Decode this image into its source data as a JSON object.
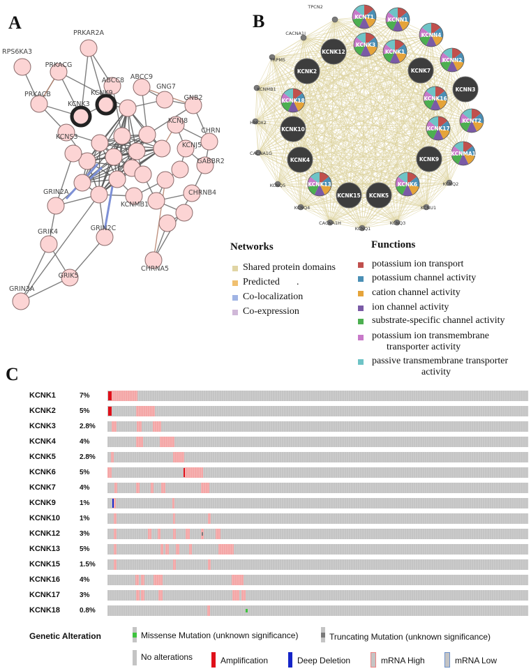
{
  "panels": {
    "a": "A",
    "b": "B",
    "c": "C"
  },
  "network_a": {
    "labels": [
      {
        "text": "PRKAR2A"
      },
      {
        "text": "RPS6KA3"
      },
      {
        "text": "PRKACG"
      },
      {
        "text": "ABCC8"
      },
      {
        "text": "ABCC9"
      },
      {
        "text": "PRKACB"
      },
      {
        "text": "KCNK3"
      },
      {
        "text": "KCNK9"
      },
      {
        "text": "GNG7"
      },
      {
        "text": "GNB2"
      },
      {
        "text": "KCNJ8"
      },
      {
        "text": "CHRN"
      },
      {
        "text": "KCNS3"
      },
      {
        "text": "KCNJ5"
      },
      {
        "text": "GABBR2"
      },
      {
        "text": "GRIN2A"
      },
      {
        "text": "CHRNB4"
      },
      {
        "text": "KCNMB1"
      },
      {
        "text": "GRIK4"
      },
      {
        "text": "GRIN2C"
      },
      {
        "text": "GRIK5"
      },
      {
        "text": "CHRNA5"
      },
      {
        "text": "GRIN3A"
      }
    ]
  },
  "network_b": {
    "big_nodes": [
      {
        "label": "KCNT1"
      },
      {
        "label": "KCNN1"
      },
      {
        "label": "KCNK12"
      },
      {
        "label": "KCNK3"
      },
      {
        "label": "KCNN4"
      },
      {
        "label": "KCNK1"
      },
      {
        "label": "KCNK2"
      },
      {
        "label": "KCNK7"
      },
      {
        "label": "KCNN2"
      },
      {
        "label": "KCNK18"
      },
      {
        "label": "KCNN3"
      },
      {
        "label": "KCNK16"
      },
      {
        "label": "KCNT2"
      },
      {
        "label": "KCNK10"
      },
      {
        "label": "KCNK17"
      },
      {
        "label": "KCNMA1"
      },
      {
        "label": "KCNK4"
      },
      {
        "label": "KCNK9"
      },
      {
        "label": "KCNK13"
      },
      {
        "label": "KCNK6"
      },
      {
        "label": "KCNK15"
      },
      {
        "label": "KCNK5"
      }
    ],
    "small_nodes": [
      {
        "label": "TPCN2"
      },
      {
        "label": "CACNA1I"
      },
      {
        "label": "TRPM5"
      },
      {
        "label": "KCNMB1"
      },
      {
        "label": "HMOX2"
      },
      {
        "label": "CACNA1G"
      },
      {
        "label": "KCNQ5"
      },
      {
        "label": "KCNQ2"
      },
      {
        "label": "KCNQ4"
      },
      {
        "label": "CACNA1H"
      },
      {
        "label": "KCNQ1"
      },
      {
        "label": "KCNQ3"
      },
      {
        "label": "KCNU1"
      }
    ]
  },
  "networks_legend": {
    "title": "Networks",
    "items": [
      {
        "label": "Shared protein domains",
        "color": "#e0d5a4"
      },
      {
        "label": "Predicted",
        "color": "#f0c070"
      },
      {
        "label": "Co-localization",
        "color": "#a0b4e4"
      },
      {
        "label": "Co-expression",
        "color": "#d0b8d8"
      }
    ],
    "stray_mark": "."
  },
  "functions_legend": {
    "title": "Functions",
    "items": [
      {
        "label": "potassium ion transport",
        "color": "#c0504d"
      },
      {
        "label": "potassium channel activity",
        "color": "#4a8fb5"
      },
      {
        "label": "cation channel activity",
        "color": "#e5a43a"
      },
      {
        "label": "ion channel activity",
        "color": "#7a5aa6"
      },
      {
        "label": "substrate-specific channel activity",
        "color": "#4caf50"
      },
      {
        "label": "potassium ion transmembrane",
        "label2": "transporter activity",
        "color": "#c879c9"
      },
      {
        "label": "passive transmembrane transporter",
        "label2": "activity",
        "color": "#6ec3c6"
      }
    ]
  },
  "oncoprint": {
    "genes": [
      {
        "gene": "KCNK1",
        "pct": "7%"
      },
      {
        "gene": "KCNK2",
        "pct": "5%"
      },
      {
        "gene": "KCNK3",
        "pct": "2.8%"
      },
      {
        "gene": "KCNK4",
        "pct": "4%"
      },
      {
        "gene": "KCNK5",
        "pct": "2.8%"
      },
      {
        "gene": "KCNK6",
        "pct": "5%"
      },
      {
        "gene": "KCNK7",
        "pct": "4%"
      },
      {
        "gene": "KCNK9",
        "pct": "1%"
      },
      {
        "gene": "KCNK10",
        "pct": "1%"
      },
      {
        "gene": "KCNK12",
        "pct": "3%"
      },
      {
        "gene": "KCNK13",
        "pct": "5%"
      },
      {
        "gene": "KCNK15",
        "pct": "1.5%"
      },
      {
        "gene": "KCNK16",
        "pct": "4%"
      },
      {
        "gene": "KCNK17",
        "pct": "3%"
      },
      {
        "gene": "KCNK18",
        "pct": "0.8%"
      }
    ],
    "legend": {
      "title": "Genetic Alteration",
      "missense": "Missense Mutation (unknown significance)",
      "truncating": "Truncating Mutation (unknown significance)",
      "no_alt": "No alterations",
      "amplification": "Amplification",
      "deep_deletion": "Deep Deletion",
      "mrna_high": "mRNA High",
      "mrna_low": "mRNA Low"
    },
    "colors": {
      "grey": "#c4c4c4",
      "high": "#f4a6a6",
      "amp": "#e0101a",
      "del": "#1525c8",
      "missense": "#3ec33e",
      "trunc": "#7a7a7a"
    }
  }
}
